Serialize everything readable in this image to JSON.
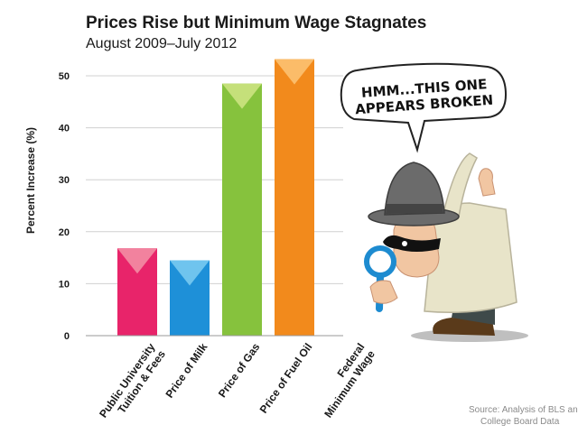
{
  "chart_data": {
    "type": "bar",
    "title": "Prices Rise but Minimum Wage Stagnates",
    "subtitle": "August 2009–July 2012",
    "ylabel": "Percent Increase (%)",
    "xlabel": "",
    "ylim": [
      0,
      50
    ],
    "yticks": [
      "0",
      "10",
      "20",
      "30",
      "40",
      "50"
    ],
    "grid": true,
    "categories": [
      [
        "Public University",
        "Tuition & Fees"
      ],
      [
        "Price of Milk"
      ],
      [
        "Price of Gas"
      ],
      [
        "Price of Fuel Oil"
      ],
      [
        "Federal",
        "Minimum Wage"
      ]
    ],
    "values": [
      16.8,
      14.5,
      48.5,
      53.2,
      0
    ],
    "colors": [
      {
        "main": "#e8246a",
        "light": "#f2829e"
      },
      {
        "main": "#1e90d8",
        "light": "#6fc4ee"
      },
      {
        "main": "#86c23d",
        "light": "#c5e07a"
      },
      {
        "main": "#f28a1c",
        "light": "#fbbc69"
      },
      {
        "main": "#cccccc",
        "light": "#eeeeee"
      }
    ]
  },
  "speech_bubble": [
    "HMM...THIS ONE",
    "APPEARS BROKEN"
  ],
  "source": [
    "Source:  Analysis of BLS and",
    "College Board Data"
  ]
}
